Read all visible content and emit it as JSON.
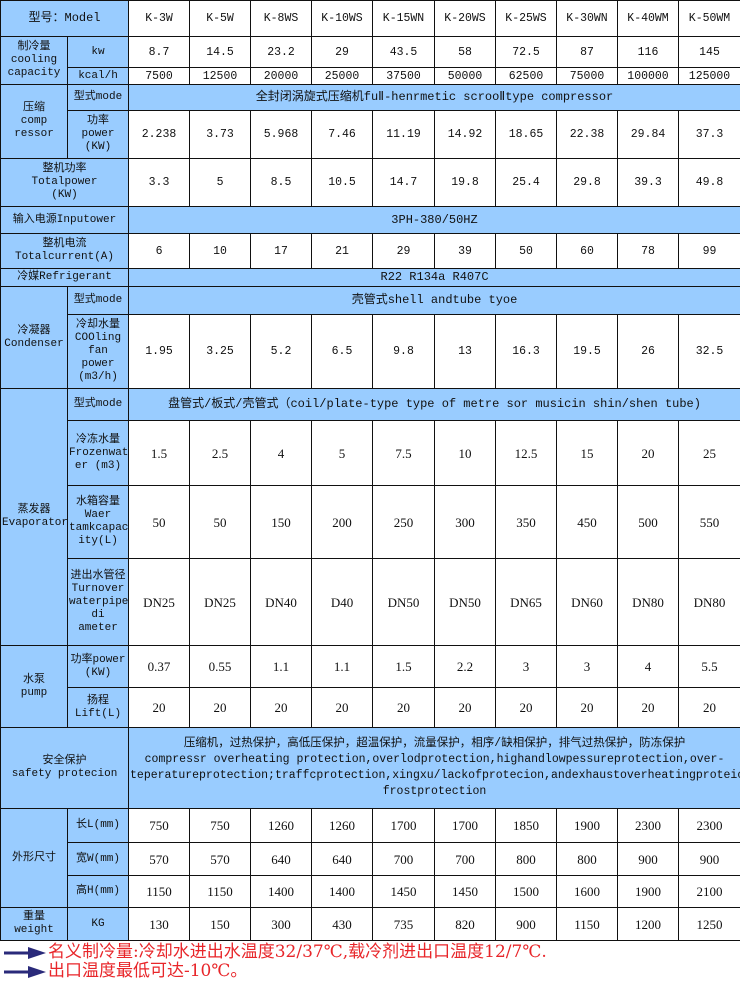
{
  "header": {
    "label": "型号：Model",
    "models": [
      "K-3W",
      "K-5W",
      "K-8WS",
      "K-10WS",
      "K-15WN",
      "K-20WS",
      "K-25WS",
      "K-30WN",
      "K-40WM",
      "K-50WM"
    ]
  },
  "rows": [
    {
      "group": "制冷量\ncooling\ncapacity",
      "group_rows": 2,
      "sub": "kw",
      "values": [
        "8.7",
        "14.5",
        "23.2",
        "29",
        "43.5",
        "58",
        "72.5",
        "87",
        "116",
        "145"
      ]
    },
    {
      "sub": "kcal/h",
      "values": [
        "7500",
        "12500",
        "20000",
        "25000",
        "37500",
        "50000",
        "62500",
        "75000",
        "100000",
        "125000"
      ]
    },
    {
      "group": "压缩\ncomp\nressor",
      "group_rows": 2,
      "sub": "型式mode",
      "span": "全封闭涡旋式压缩机fuⅡ-henrmetic scrooⅡtype compressor"
    },
    {
      "sub": "功率\npower\n(KW)",
      "values": [
        "2.238",
        "3.73",
        "5.968",
        "7.46",
        "11.19",
        "14.92",
        "18.65",
        "22.38",
        "29.84",
        "37.3"
      ]
    },
    {
      "label": "整机功率\nTotalpower\n(KW)",
      "values": [
        "3.3",
        "5",
        "8.5",
        "10.5",
        "14.7",
        "19.8",
        "25.4",
        "29.8",
        "39.3",
        "49.8"
      ]
    },
    {
      "label": "输入电源Inputower",
      "span": "3PH-380/50HZ"
    },
    {
      "label": "整机电流\nTotalcurrent(A)",
      "values": [
        "6",
        "10",
        "17",
        "21",
        "29",
        "39",
        "50",
        "60",
        "78",
        "99"
      ]
    },
    {
      "label": "冷媒Refrigerant",
      "span": "R22 R134a R407C"
    },
    {
      "group": "冷凝器\nCondenser",
      "group_rows": 2,
      "sub": "型式mode",
      "span": "壳管式shell andtube tyoe"
    },
    {
      "sub": "冷却水量\nCOOling\nfan power\n(m3/h)",
      "values": [
        "1.95",
        "3.25",
        "5.2",
        "6.5",
        "9.8",
        "13",
        "16.3",
        "19.5",
        "26",
        "32.5"
      ]
    },
    {
      "group": "蒸发器\nEvaporator",
      "group_rows": 4,
      "sub": "型式mode",
      "span": "盘管式/板式/壳管式（coil/plate-type type of metre sor musicin shin/shen tube)"
    },
    {
      "sub": "冷冻水量\nFrozenwat\ner (m3)",
      "values": [
        "1.5",
        "2.5",
        "4",
        "5",
        "7.5",
        "10",
        "12.5",
        "15",
        "20",
        "25"
      ]
    },
    {
      "sub": "水箱容量\nWaer\ntamkcapac\nity(L)",
      "values": [
        "50",
        "50",
        "150",
        "200",
        "250",
        "300",
        "350",
        "450",
        "500",
        "550"
      ]
    },
    {
      "sub": "进出水管径\nTurnover\nwaterpipe\ndi ameter",
      "values": [
        "DN25",
        "DN25",
        "DN40",
        "D40",
        "DN50",
        "DN50",
        "DN65",
        "DN60",
        "DN80",
        "DN80"
      ]
    },
    {
      "group": "水泵\npump",
      "group_rows": 2,
      "sub": "功率power\n(KW)",
      "values": [
        "0.37",
        "0.55",
        "1.1",
        "1.1",
        "1.5",
        "2.2",
        "3",
        "3",
        "4",
        "5.5"
      ]
    },
    {
      "sub": "扬程\nLift(L)",
      "values": [
        "20",
        "20",
        "20",
        "20",
        "20",
        "20",
        "20",
        "20",
        "20",
        "20"
      ]
    },
    {
      "label": "安全保护\nsafety protecion",
      "span": "压缩机，过热保护，高低压保护，超温保护，流量保护，相序/缺相保护，排气过热保护，防冻保护\ncompressr overheating protection,overlodprotection,highandlowpessureprotection,over-teperatureprotection;traffcprotection,xingxu/lackofprotecion,andexhaustoverheatingproteion,     frostprotection"
    },
    {
      "group": "外形尺寸",
      "group_rows": 3,
      "sub": "长L(mm)",
      "values": [
        "750",
        "750",
        "1260",
        "1260",
        "1700",
        "1700",
        "1850",
        "1900",
        "2300",
        "2300"
      ]
    },
    {
      "sub": "宽W(mm)",
      "values": [
        "570",
        "570",
        "640",
        "640",
        "700",
        "700",
        "800",
        "800",
        "900",
        "900"
      ]
    },
    {
      "sub": "高H(mm)",
      "values": [
        "1150",
        "1150",
        "1400",
        "1400",
        "1450",
        "1450",
        "1500",
        "1600",
        "1900",
        "2100"
      ]
    },
    {
      "group": "重量\nweight",
      "group_rows": 1,
      "sub": "KG",
      "values": [
        "130",
        "150",
        "300",
        "430",
        "735",
        "820",
        "900",
        "1150",
        "1200",
        "1250"
      ]
    }
  ],
  "notes": [
    "名义制冷量:冷却水进出水温度32/37℃,载冷剂进出口温度12/7℃.",
    "出口温度最低可达-10℃。"
  ],
  "colors": {
    "header_fill": "#99ccff",
    "note_text": "#e8262a",
    "arrow": "#2a2a7a"
  },
  "icons": {
    "note_bullet": "arrow-right-icon"
  }
}
